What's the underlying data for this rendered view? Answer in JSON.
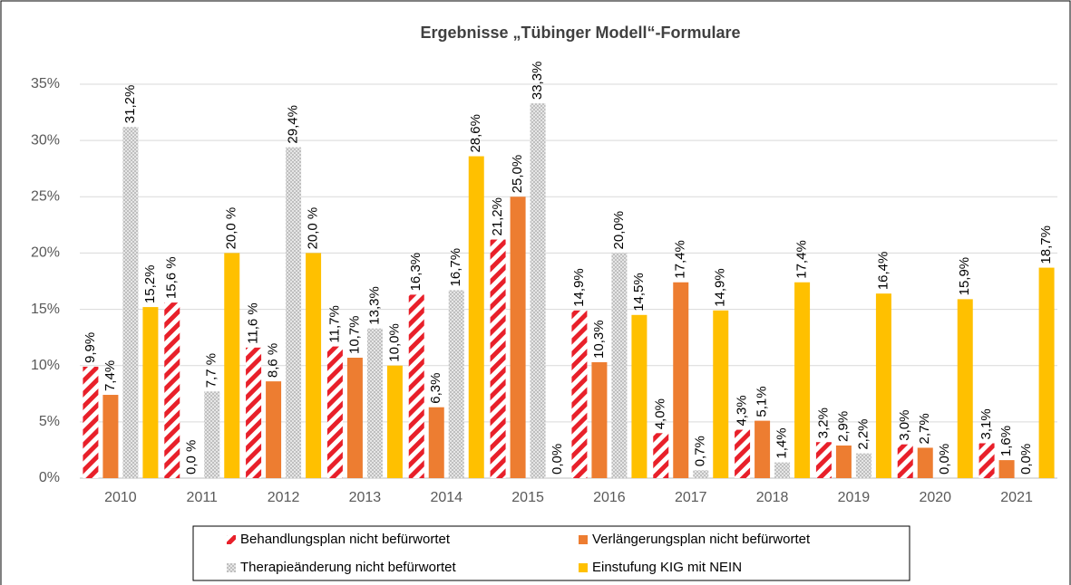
{
  "chart_data": {
    "type": "bar",
    "title": "Ergebnisse „Tübinger Modell“-Formulare",
    "categories": [
      "2010",
      "2011",
      "2012",
      "2013",
      "2014",
      "2015",
      "2016",
      "2017",
      "2018",
      "2019",
      "2020",
      "2021"
    ],
    "series": [
      {
        "name": "Behandlungsplan nicht befürwortet",
        "color": "#e8202a",
        "pattern": "stripes",
        "values": [
          9.9,
          15.6,
          11.6,
          11.7,
          16.3,
          21.2,
          14.9,
          4.0,
          4.3,
          3.2,
          3.0,
          3.1
        ],
        "value_labels": [
          "9,9%",
          "15,6 %",
          "11,6 %",
          "11,7%",
          "16,3%",
          "21,2%",
          "14,9%",
          "4,0%",
          "4,3%",
          "3,2%",
          "3,0%",
          "3,1%"
        ]
      },
      {
        "name": "Verlängerungsplan nicht befürwortet",
        "color": "#ed7d31",
        "pattern": "solid",
        "values": [
          7.4,
          0.0,
          8.6,
          10.7,
          6.3,
          25.0,
          10.3,
          17.4,
          5.1,
          2.9,
          2.7,
          1.6
        ],
        "value_labels": [
          "7,4%",
          "0,0 %",
          "8,6 %",
          "10,7%",
          "6,3%",
          "25,0%",
          "10,3%",
          "17,4%",
          "5,1%",
          "2,9%",
          "2,7%",
          "1,6%"
        ]
      },
      {
        "name": "Therapieänderung nicht befürwortet",
        "color": "#bfbfbf",
        "pattern": "checker",
        "values": [
          31.2,
          7.7,
          29.4,
          13.3,
          16.7,
          33.3,
          20.0,
          0.7,
          1.4,
          2.2,
          0.0,
          0.0
        ],
        "value_labels": [
          "31,2%",
          "7,7 %",
          "29,4%",
          "13,3%",
          "16,7%",
          "33,3%",
          "20,0%",
          "0,7%",
          "1,4%",
          "2,2%",
          "0,0%",
          "0,0%"
        ]
      },
      {
        "name": "Einstufung KIG mit NEIN",
        "color": "#ffc000",
        "pattern": "solid",
        "values": [
          15.2,
          20.0,
          20.0,
          10.0,
          28.6,
          0.0,
          14.5,
          14.9,
          17.4,
          16.4,
          15.9,
          18.7
        ],
        "value_labels": [
          "15,2%",
          "20,0 %",
          "20,0 %",
          "10,0%",
          "28,6%",
          "0,0%",
          "14,5%",
          "14,9%",
          "17,4%",
          "16,4%",
          "15,9%",
          "18,7%"
        ]
      }
    ],
    "ylim": [
      0,
      35
    ],
    "yticks": [
      {
        "value": 0,
        "label": "0%"
      },
      {
        "value": 5,
        "label": "5%"
      },
      {
        "value": 10,
        "label": "10%"
      },
      {
        "value": 15,
        "label": "15%"
      },
      {
        "value": 20,
        "label": "20%"
      },
      {
        "value": 25,
        "label": "25%"
      },
      {
        "value": 30,
        "label": "30%"
      },
      {
        "value": 35,
        "label": "35%"
      }
    ],
    "grid": true,
    "legend": "bottom"
  }
}
